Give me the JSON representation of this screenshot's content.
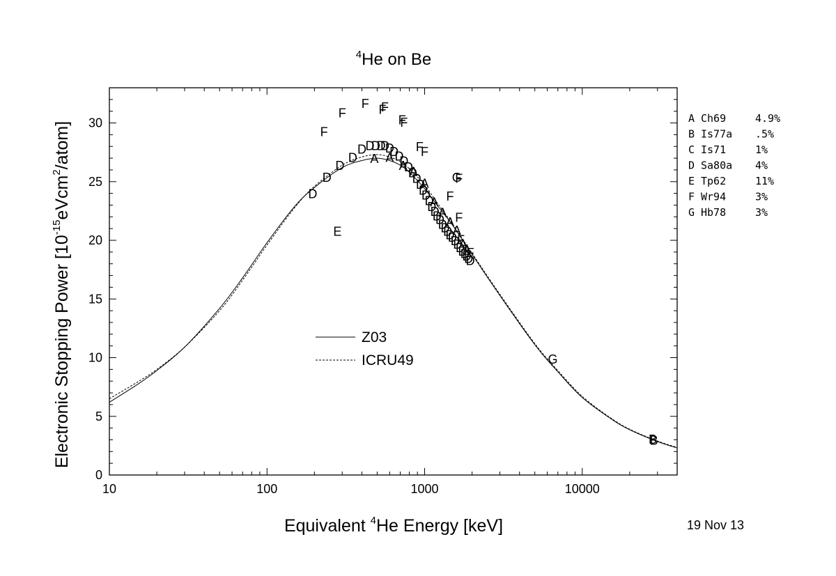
{
  "chart_data": {
    "type": "scatter",
    "title_parts": {
      "sup": "4",
      "rest": "He on Be"
    },
    "xlabel_parts": {
      "pre": "Equivalent ",
      "sup": "4",
      "post": "He Energy [keV]"
    },
    "ylabel_parts": {
      "pre": "Electronic Stopping Power [10",
      "sup1": "-15",
      "mid": "eVcm",
      "sup2": "2",
      "post": "/atom]"
    },
    "xscale": "log",
    "xlim": [
      10,
      40000
    ],
    "ylim": [
      0,
      33
    ],
    "x_ticks": [
      10,
      100,
      1000,
      10000
    ],
    "x_tick_labels": [
      "10",
      "100",
      "1000",
      "10000"
    ],
    "y_ticks": [
      0,
      5,
      10,
      15,
      20,
      25,
      30
    ],
    "y_tick_labels": [
      "0",
      "5",
      "10",
      "15",
      "20",
      "25",
      "30"
    ],
    "date": "19 Nov 13",
    "curves": [
      {
        "name": "Z03",
        "style": "solid",
        "points": [
          [
            10,
            6.2
          ],
          [
            15,
            7.7
          ],
          [
            20,
            8.9
          ],
          [
            30,
            10.9
          ],
          [
            50,
            14.2
          ],
          [
            70,
            16.8
          ],
          [
            100,
            19.8
          ],
          [
            150,
            22.9
          ],
          [
            200,
            24.5
          ],
          [
            300,
            26.2
          ],
          [
            400,
            26.8
          ],
          [
            500,
            27.0
          ],
          [
            600,
            26.8
          ],
          [
            700,
            26.4
          ],
          [
            800,
            25.8
          ],
          [
            1000,
            24.4
          ],
          [
            1200,
            23.0
          ],
          [
            1500,
            21.3
          ],
          [
            2000,
            18.8
          ],
          [
            3000,
            15.3
          ],
          [
            5000,
            11.1
          ],
          [
            7000,
            8.8
          ],
          [
            10000,
            6.6
          ],
          [
            15000,
            4.85
          ],
          [
            20000,
            3.85
          ],
          [
            30000,
            2.85
          ],
          [
            40000,
            2.3
          ]
        ]
      },
      {
        "name": "ICRU49",
        "style": "dashed",
        "points": [
          [
            10,
            6.5
          ],
          [
            15,
            7.9
          ],
          [
            20,
            9.0
          ],
          [
            30,
            10.9
          ],
          [
            50,
            14.0
          ],
          [
            70,
            16.6
          ],
          [
            100,
            19.6
          ],
          [
            150,
            22.8
          ],
          [
            200,
            24.6
          ],
          [
            300,
            26.4
          ],
          [
            400,
            27.1
          ],
          [
            500,
            27.3
          ],
          [
            600,
            27.1
          ],
          [
            700,
            26.7
          ],
          [
            800,
            26.1
          ],
          [
            1000,
            24.7
          ],
          [
            1200,
            23.2
          ],
          [
            1500,
            21.4
          ],
          [
            2000,
            18.9
          ],
          [
            3000,
            15.4
          ],
          [
            5000,
            11.2
          ],
          [
            7000,
            8.9
          ],
          [
            10000,
            6.7
          ],
          [
            15000,
            4.9
          ],
          [
            20000,
            3.9
          ],
          [
            30000,
            2.9
          ],
          [
            40000,
            2.35
          ]
        ]
      }
    ],
    "series": [
      {
        "marker": "A",
        "name": "Ch69",
        "error": "4.9%",
        "points": [
          [
            480,
            27.0
          ],
          [
            600,
            27.1
          ],
          [
            730,
            26.4
          ],
          [
            850,
            25.9
          ],
          [
            1000,
            24.9
          ],
          [
            1150,
            23.3
          ],
          [
            1300,
            22.4
          ],
          [
            1450,
            21.6
          ],
          [
            1600,
            20.9
          ],
          [
            1750,
            19.7
          ],
          [
            1850,
            19.3
          ]
        ]
      },
      {
        "marker": "B",
        "name": "Is77a",
        "error": ".5%",
        "points": [
          [
            28000,
            3.1
          ],
          [
            28500,
            3.0
          ]
        ]
      },
      {
        "marker": "C",
        "name": "Is71",
        "error": "1%",
        "points": []
      },
      {
        "marker": "D",
        "name": "Sa80a",
        "error": "4%",
        "points": [
          [
            195,
            24.0
          ],
          [
            240,
            25.4
          ],
          [
            290,
            26.4
          ],
          [
            350,
            27.1
          ],
          [
            400,
            27.8
          ],
          [
            450,
            28.1
          ],
          [
            490,
            28.1
          ],
          [
            530,
            28.1
          ],
          [
            560,
            28.1
          ],
          [
            600,
            27.9
          ],
          [
            640,
            27.6
          ],
          [
            690,
            27.2
          ],
          [
            740,
            26.8
          ],
          [
            790,
            26.3
          ],
          [
            840,
            25.8
          ],
          [
            890,
            25.3
          ],
          [
            940,
            24.8
          ],
          [
            980,
            24.3
          ],
          [
            1020,
            23.9
          ],
          [
            1070,
            23.4
          ],
          [
            1110,
            22.9
          ],
          [
            1160,
            22.5
          ],
          [
            1200,
            22.1
          ],
          [
            1250,
            21.8
          ],
          [
            1300,
            21.4
          ],
          [
            1350,
            21.1
          ],
          [
            1400,
            20.8
          ],
          [
            1450,
            20.5
          ],
          [
            1500,
            20.3
          ],
          [
            1560,
            20.0
          ],
          [
            1620,
            19.7
          ],
          [
            1680,
            19.4
          ],
          [
            1740,
            19.1
          ],
          [
            1800,
            18.9
          ],
          [
            1850,
            18.7
          ],
          [
            1900,
            18.5
          ],
          [
            1950,
            18.3
          ]
        ]
      },
      {
        "marker": "E",
        "name": "Tp62",
        "error": "11%",
        "points": [
          [
            280,
            20.8
          ]
        ]
      },
      {
        "marker": "F",
        "name": "Wr94",
        "error": "3%",
        "points": [
          [
            230,
            29.3
          ],
          [
            300,
            30.9
          ],
          [
            420,
            31.7
          ],
          [
            540,
            31.2
          ],
          [
            560,
            31.4
          ],
          [
            720,
            30.3
          ],
          [
            740,
            30.1
          ],
          [
            930,
            28.0
          ],
          [
            1000,
            27.6
          ],
          [
            1650,
            25.3
          ],
          [
            1450,
            23.8
          ],
          [
            1650,
            22.0
          ],
          [
            1700,
            20.1
          ],
          [
            1950,
            19.0
          ]
        ]
      },
      {
        "marker": "G",
        "name": "Hb78",
        "error": "3%",
        "points": [
          [
            1600,
            25.4
          ],
          [
            6500,
            9.9
          ]
        ]
      }
    ],
    "inset_legend": [
      {
        "name": "Z03",
        "style": "solid"
      },
      {
        "name": "ICRU49",
        "style": "dashed"
      }
    ]
  }
}
